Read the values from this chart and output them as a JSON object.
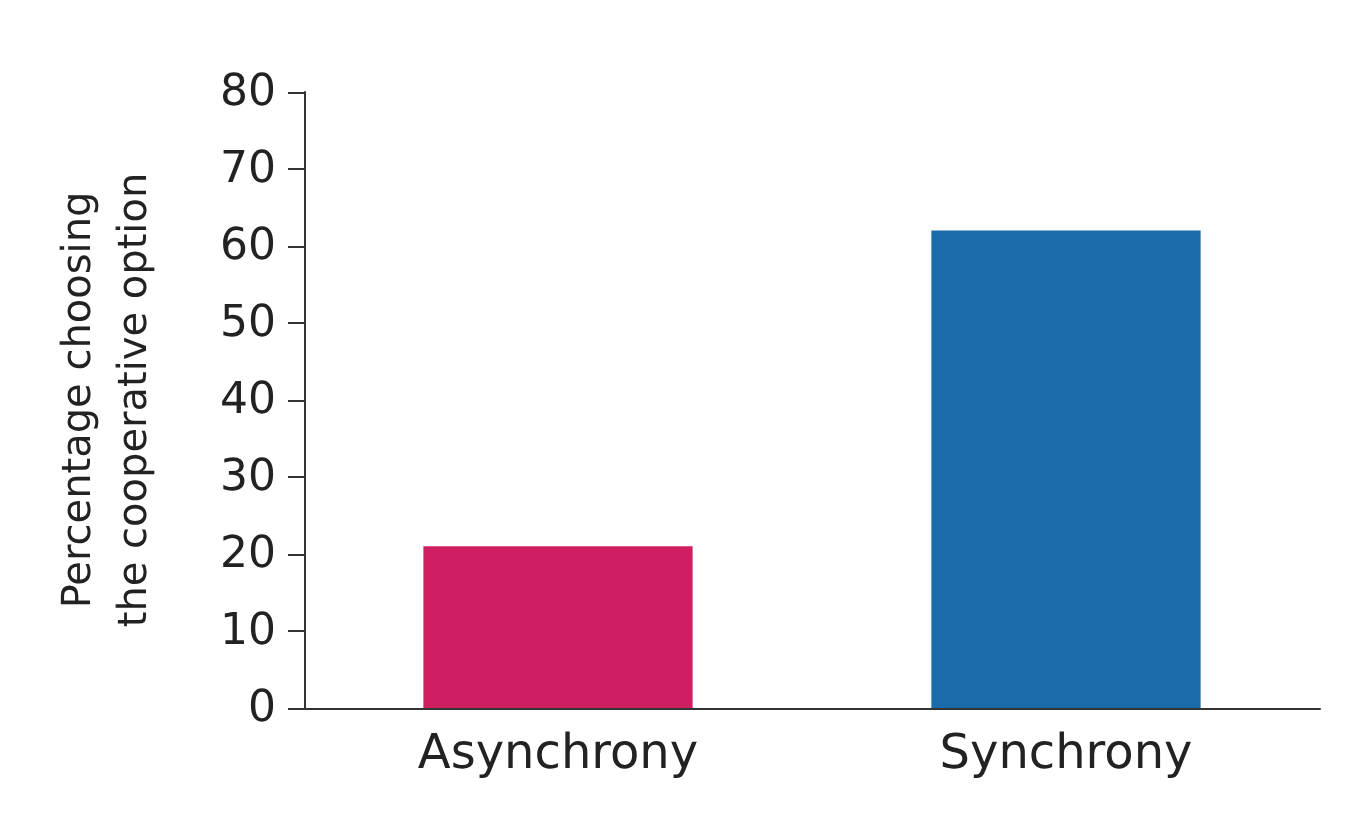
{
  "chart_data": {
    "type": "bar",
    "ylabel": "Percentage choosing the cooperative option",
    "categories": [
      "Asynchrony",
      "Synchrony"
    ],
    "values": [
      21,
      62
    ],
    "colors": [
      "#cf1f62",
      "#196ba9"
    ],
    "ylim": [
      0,
      80
    ],
    "yticks": [
      0,
      10,
      20,
      30,
      40,
      50,
      60,
      70,
      80
    ],
    "grid": false
  }
}
